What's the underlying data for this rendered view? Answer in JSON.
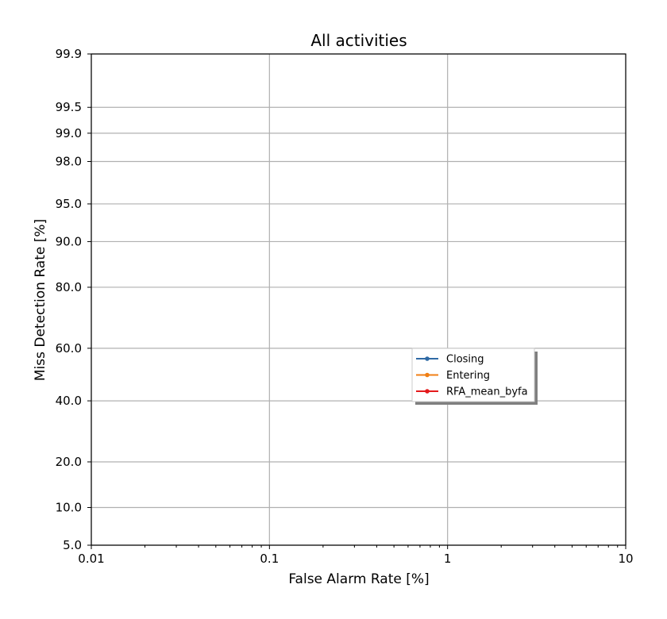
{
  "chart_data": {
    "type": "line",
    "title": "All activities",
    "xlabel": "False Alarm Rate [%]",
    "ylabel": "Miss Detection Rate [%]",
    "x_scale": "log",
    "y_scale": "normal-probability",
    "xlim": [
      0.01,
      10
    ],
    "ylim": [
      5.0,
      99.9
    ],
    "x_ticks": [
      0.01,
      0.1,
      1,
      10
    ],
    "x_tick_labels": [
      "0.01",
      "0.1",
      "1",
      "10"
    ],
    "y_ticks": [
      5.0,
      10.0,
      20.0,
      40.0,
      60.0,
      80.0,
      90.0,
      95.0,
      98.0,
      99.0,
      99.5,
      99.9
    ],
    "y_tick_labels": [
      "5.0",
      "10.0",
      "20.0",
      "40.0",
      "60.0",
      "80.0",
      "90.0",
      "95.0",
      "98.0",
      "99.0",
      "99.5",
      "99.9"
    ],
    "grid": true,
    "legend_position": "center-right",
    "series": [
      {
        "name": "Closing",
        "color": "#2f6aa5",
        "x": [],
        "y": []
      },
      {
        "name": "Entering",
        "color": "#f07f14",
        "x": [],
        "y": []
      },
      {
        "name": "RFA_mean_byfa",
        "color": "#e41a1c",
        "x": [],
        "y": []
      }
    ]
  }
}
